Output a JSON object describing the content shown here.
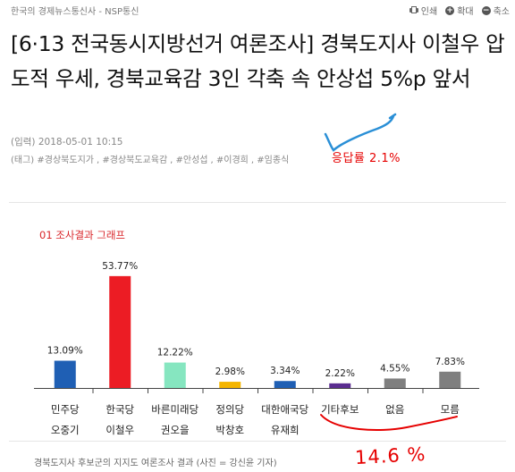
{
  "header": {
    "site_name": "한국의 경제뉴스통신사 - NSP통신",
    "tools": [
      {
        "label": "인쇄",
        "icon": "print-icon"
      },
      {
        "label": "확대",
        "icon": "zoom-in-icon"
      },
      {
        "label": "축소",
        "icon": "zoom-out-icon"
      }
    ]
  },
  "article": {
    "headline": "[6·13 전국동시지방선거 여론조사] 경북도지사 이철우 압도적 우세, 경북교육감 3인 각축 속 안상섭 5%p 앞서",
    "date_line": "(입력) 2018-05-01 10:15",
    "tags_label": "(태그)",
    "tags": [
      "#경상북도지가",
      "#경상북도교육감",
      "#안성섭",
      "#이경희",
      "#임종식"
    ],
    "caption": "경북도지사 후보군의 지지도 여론조사 결과 (사진 = 강신윤 기자)"
  },
  "annotations": {
    "response_rate": "응답률 2.1%",
    "sum_note": "14.6 %"
  },
  "chart_data": {
    "type": "bar",
    "title": "01 조사결과 그래프",
    "categories": [
      [
        "민주당",
        "오중기"
      ],
      [
        "한국당",
        "이철우"
      ],
      [
        "바른미래당",
        "권오을"
      ],
      [
        "정의당",
        "박창호"
      ],
      [
        "대한애국당",
        "유재희"
      ],
      [
        "기타후보",
        ""
      ],
      [
        "없음",
        ""
      ],
      [
        "모름",
        ""
      ]
    ],
    "values": [
      13.09,
      53.77,
      12.22,
      2.98,
      3.34,
      2.22,
      4.55,
      7.83
    ],
    "labels": [
      "13.09%",
      "53.77%",
      "12.22%",
      "2.98%",
      "3.34%",
      "2.22%",
      "4.55%",
      "7.83%"
    ],
    "colors": [
      "#1f5fb4",
      "#ec1c24",
      "#86e6c0",
      "#f4b500",
      "#1f5fb4",
      "#5b2d90",
      "#7f7f7f",
      "#7f7f7f"
    ],
    "ylim": [
      0,
      55
    ]
  }
}
